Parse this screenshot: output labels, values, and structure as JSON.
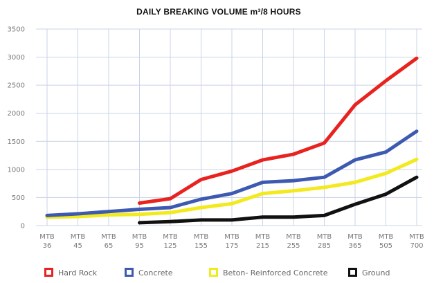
{
  "chart_data": {
    "type": "line",
    "title": "DAILY BREAKING VOLUME m³/8 HOURS",
    "xlabel": "",
    "ylabel": "",
    "ylim": [
      0,
      3500
    ],
    "yticks": [
      0,
      500,
      1000,
      1500,
      2000,
      2500,
      3000,
      3500
    ],
    "grid": true,
    "legend_position": "bottom",
    "categories": [
      [
        "MTB",
        "36"
      ],
      [
        "MTB",
        "45"
      ],
      [
        "MTB",
        "65"
      ],
      [
        "MTB",
        "95"
      ],
      [
        "MTB",
        "125"
      ],
      [
        "MTB",
        "155"
      ],
      [
        "MTB",
        "175"
      ],
      [
        "MTB",
        "215"
      ],
      [
        "MTB",
        "255"
      ],
      [
        "MTB",
        "285"
      ],
      [
        "MTB",
        "365"
      ],
      [
        "MTB",
        "505"
      ],
      [
        "MTB",
        "700"
      ]
    ],
    "series": [
      {
        "name": "Hard Rock",
        "color": "#e8231f",
        "values": [
          null,
          null,
          null,
          400,
          480,
          820,
          970,
          1170,
          1270,
          1470,
          2150,
          2580,
          2980
        ]
      },
      {
        "name": "Concrete",
        "color": "#3d59b0",
        "values": [
          180,
          210,
          250,
          290,
          320,
          470,
          570,
          770,
          800,
          860,
          1170,
          1310,
          1680
        ]
      },
      {
        "name": "Beton- Reinforced Concrete",
        "color": "#f2ea1c",
        "values": [
          150,
          160,
          190,
          200,
          230,
          320,
          390,
          570,
          620,
          680,
          770,
          930,
          1180
        ]
      },
      {
        "name": "Ground",
        "color": "#111111",
        "values": [
          null,
          null,
          null,
          50,
          70,
          100,
          100,
          150,
          150,
          180,
          380,
          560,
          860
        ]
      }
    ]
  }
}
